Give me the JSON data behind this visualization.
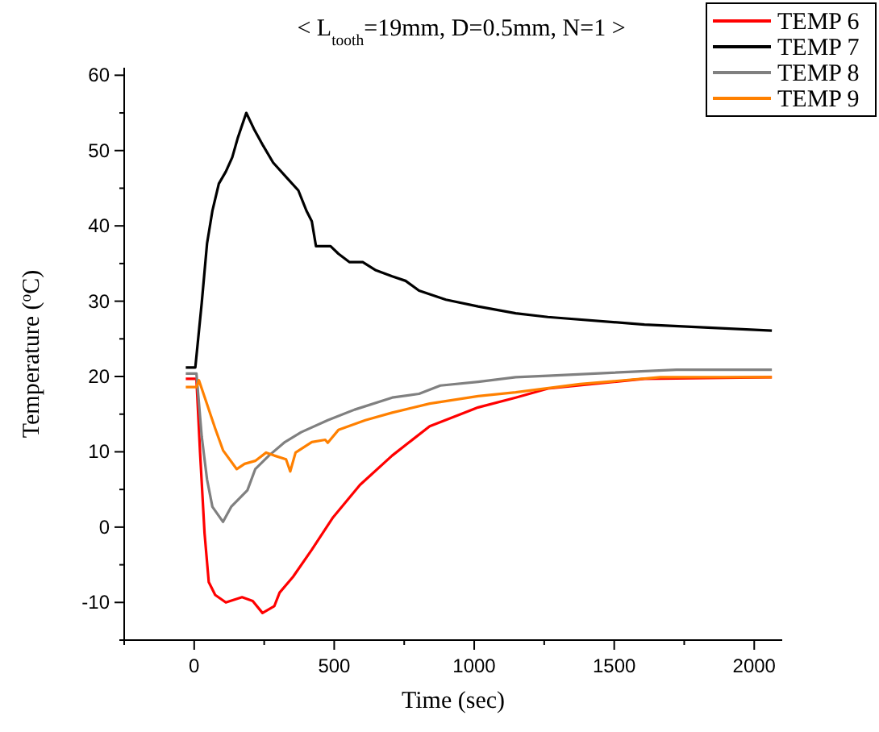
{
  "chart_data": {
    "type": "line",
    "title": "< L$_{tooth}$=19mm, D=0.5mm, N=1 >",
    "xlabel": "Time (sec)",
    "ylabel": "Temperature ($^{o}$C)",
    "xlim": [
      -250,
      2100
    ],
    "xticks": [
      {
        "value": -250,
        "label": null
      },
      0,
      {
        "value": 250,
        "label": null
      },
      500,
      {
        "value": 750,
        "label": null
      },
      1000,
      {
        "value": 1250,
        "label": null
      },
      1500,
      {
        "value": 1750,
        "label": null
      },
      2000
    ],
    "ylim": [
      -15,
      61
    ],
    "yticks": [
      {
        "value": -15,
        "label": null
      },
      -10,
      {
        "value": -5,
        "label": null
      },
      0,
      {
        "value": 5,
        "label": null
      },
      10,
      {
        "value": 15,
        "label": null
      },
      20,
      {
        "value": 25,
        "label": null
      },
      30,
      {
        "value": 35,
        "label": null
      },
      40,
      {
        "value": 45,
        "label": null
      },
      50,
      {
        "value": 55,
        "label": null
      },
      60
    ],
    "legend": "top right",
    "grid": false,
    "marker": "none",
    "line_style": "solid",
    "series": [
      {
        "name": "TEMP 6",
        "color": "#ff0000",
        "x": [
          -30,
          8,
          21,
          37,
          52,
          75,
          113,
          171,
          209,
          244,
          286,
          305,
          353,
          420,
          496,
          592,
          707,
          841,
          1014,
          1148,
          1263,
          1608,
          2063
        ],
        "values": [
          19.7,
          19.7,
          9.9,
          -0.8,
          -7.3,
          -9,
          -10,
          -9.3,
          -9.8,
          -11.4,
          -10.5,
          -8.7,
          -6.6,
          -3,
          1.3,
          5.6,
          9.5,
          13.4,
          15.9,
          17.2,
          18.4,
          19.7,
          19.9
        ]
      },
      {
        "name": "TEMP 7",
        "color": "#000000",
        "x": [
          -30,
          4,
          27,
          46,
          65,
          88,
          113,
          136,
          155,
          186,
          213,
          247,
          282,
          333,
          372,
          401,
          420,
          435,
          487,
          515,
          554,
          602,
          649,
          707,
          755,
          803,
          899,
          1014,
          1148,
          1263,
          1608,
          2063
        ],
        "values": [
          21.2,
          21.2,
          29.8,
          37.7,
          42,
          45.6,
          47.2,
          49.1,
          51.6,
          55,
          52.9,
          50.6,
          48.4,
          46.3,
          44.7,
          42,
          40.6,
          37.3,
          37.3,
          36.3,
          35.2,
          35.2,
          34.1,
          33.3,
          32.7,
          31.4,
          30.2,
          29.3,
          28.4,
          27.9,
          26.9,
          26.1
        ]
      },
      {
        "name": "TEMP 8",
        "color": "#808080",
        "x": [
          -30,
          8,
          27,
          46,
          65,
          103,
          132,
          161,
          190,
          218,
          267,
          324,
          382,
          477,
          573,
          707,
          803,
          879,
          1014,
          1148,
          1263,
          1723,
          2063
        ],
        "values": [
          20.4,
          20.4,
          12,
          6.3,
          2.7,
          0.7,
          2.7,
          3.8,
          4.9,
          7.7,
          9.5,
          11.3,
          12.6,
          14.2,
          15.6,
          17.2,
          17.7,
          18.8,
          19.3,
          19.9,
          20.1,
          20.9,
          20.9
        ]
      },
      {
        "name": "TEMP 9",
        "color": "#ff8000",
        "x": [
          -30,
          8,
          17,
          46,
          75,
          103,
          152,
          180,
          218,
          257,
          286,
          328,
          343,
          362,
          420,
          468,
          477,
          515,
          611,
          707,
          841,
          1014,
          1148,
          1378,
          1665,
          2063
        ],
        "values": [
          18.6,
          18.6,
          19.5,
          16.3,
          13.1,
          10.2,
          7.7,
          8.4,
          8.8,
          9.9,
          9.5,
          9,
          7.4,
          9.9,
          11.3,
          11.6,
          11.2,
          12.9,
          14.2,
          15.2,
          16.4,
          17.4,
          17.9,
          19,
          19.9,
          19.9
        ]
      }
    ]
  }
}
